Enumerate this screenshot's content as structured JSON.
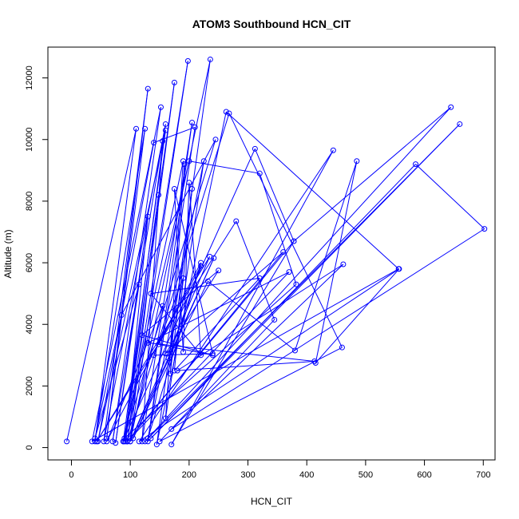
{
  "chart_data": {
    "type": "line",
    "title": "ATOM3 Southbound HCN_CIT",
    "xlabel": "HCN_CIT",
    "ylabel": "Altitude (m)",
    "xlim": [
      -40,
      720
    ],
    "ylim": [
      -400,
      13000
    ],
    "xticks": [
      0,
      100,
      200,
      300,
      400,
      500,
      600,
      700
    ],
    "yticks": [
      0,
      2000,
      4000,
      6000,
      8000,
      10000,
      12000
    ],
    "grid": false,
    "marker": "open-circle",
    "line_color": "#0000ff",
    "series": [
      {
        "values": [
          {
            "x": -8,
            "y": 200
          },
          {
            "x": 110,
            "y": 10350
          },
          {
            "x": 40,
            "y": 200
          },
          {
            "x": 125,
            "y": 10350
          },
          {
            "x": 60,
            "y": 300
          },
          {
            "x": 130,
            "y": 11650
          },
          {
            "x": 55,
            "y": 200
          },
          {
            "x": 160,
            "y": 10500
          },
          {
            "x": 90,
            "y": 200
          },
          {
            "x": 175,
            "y": 11850
          },
          {
            "x": 95,
            "y": 200
          },
          {
            "x": 198,
            "y": 12550
          },
          {
            "x": 100,
            "y": 200
          },
          {
            "x": 236,
            "y": 12600
          },
          {
            "x": 145,
            "y": 100
          },
          {
            "x": 263,
            "y": 10900
          },
          {
            "x": 556,
            "y": 5800
          },
          {
            "x": 35,
            "y": 200
          },
          {
            "x": 152,
            "y": 11050
          },
          {
            "x": 70,
            "y": 200
          },
          {
            "x": 155,
            "y": 9950
          },
          {
            "x": 120,
            "y": 200
          },
          {
            "x": 205,
            "y": 10550
          },
          {
            "x": 130,
            "y": 200
          },
          {
            "x": 210,
            "y": 10400
          },
          {
            "x": 140,
            "y": 9900
          },
          {
            "x": 45,
            "y": 200
          },
          {
            "x": 160,
            "y": 10300
          },
          {
            "x": 88,
            "y": 200
          },
          {
            "x": 245,
            "y": 10000
          },
          {
            "x": 85,
            "y": 4300
          },
          {
            "x": 40,
            "y": 300
          },
          {
            "x": 115,
            "y": 5300
          },
          {
            "x": 75,
            "y": 150
          },
          {
            "x": 130,
            "y": 7500
          },
          {
            "x": 92,
            "y": 200
          },
          {
            "x": 148,
            "y": 8200
          },
          {
            "x": 100,
            "y": 300
          },
          {
            "x": 155,
            "y": 4600
          },
          {
            "x": 60,
            "y": 200
          },
          {
            "x": 220,
            "y": 6000
          },
          {
            "x": 130,
            "y": 300
          },
          {
            "x": 225,
            "y": 9300
          },
          {
            "x": 160,
            "y": 950
          },
          {
            "x": 190,
            "y": 9300
          },
          {
            "x": 88,
            "y": 200
          },
          {
            "x": 200,
            "y": 9300
          },
          {
            "x": 320,
            "y": 8900
          },
          {
            "x": 382,
            "y": 5300
          },
          {
            "x": 90,
            "y": 300
          },
          {
            "x": 312,
            "y": 9700
          },
          {
            "x": 378,
            "y": 6700
          },
          {
            "x": 95,
            "y": 200
          },
          {
            "x": 268,
            "y": 10850
          },
          {
            "x": 460,
            "y": 3250
          },
          {
            "x": 150,
            "y": 200
          },
          {
            "x": 345,
            "y": 4150
          },
          {
            "x": 280,
            "y": 7350
          },
          {
            "x": 43,
            "y": 200
          },
          {
            "x": 235,
            "y": 6200
          },
          {
            "x": 100,
            "y": 200
          },
          {
            "x": 242,
            "y": 6150
          },
          {
            "x": 105,
            "y": 300
          },
          {
            "x": 232,
            "y": 5400
          },
          {
            "x": 380,
            "y": 3150
          },
          {
            "x": 485,
            "y": 9300
          },
          {
            "x": 415,
            "y": 2750
          },
          {
            "x": 557,
            "y": 5800
          },
          {
            "x": 115,
            "y": 200
          },
          {
            "x": 445,
            "y": 9650
          },
          {
            "x": 170,
            "y": 100
          },
          {
            "x": 378,
            "y": 6700
          },
          {
            "x": 645,
            "y": 11050
          },
          {
            "x": 125,
            "y": 200
          },
          {
            "x": 660,
            "y": 10500
          },
          {
            "x": 135,
            "y": 300
          },
          {
            "x": 585,
            "y": 9200
          },
          {
            "x": 702,
            "y": 7100
          },
          {
            "x": 170,
            "y": 600
          },
          {
            "x": 462,
            "y": 5950
          },
          {
            "x": 180,
            "y": 2500
          },
          {
            "x": 413,
            "y": 2800
          },
          {
            "x": 130,
            "y": 3400
          },
          {
            "x": 370,
            "y": 5700
          },
          {
            "x": 95,
            "y": 200
          },
          {
            "x": 360,
            "y": 6350
          },
          {
            "x": 160,
            "y": 3050
          },
          {
            "x": 250,
            "y": 5750
          },
          {
            "x": 120,
            "y": 3650
          },
          {
            "x": 240,
            "y": 3000
          },
          {
            "x": 148,
            "y": 3350
          },
          {
            "x": 220,
            "y": 5900
          },
          {
            "x": 165,
            "y": 2900
          },
          {
            "x": 190,
            "y": 5500
          },
          {
            "x": 140,
            "y": 3000
          },
          {
            "x": 240,
            "y": 3050
          },
          {
            "x": 175,
            "y": 8400
          },
          {
            "x": 190,
            "y": 3100
          },
          {
            "x": 200,
            "y": 8600
          },
          {
            "x": 220,
            "y": 3000
          },
          {
            "x": 135,
            "y": 5000
          },
          {
            "x": 320,
            "y": 5500
          },
          {
            "x": 175,
            "y": 2500
          },
          {
            "x": 205,
            "y": 8400
          },
          {
            "x": 168,
            "y": 2400
          },
          {
            "x": 192,
            "y": 9200
          }
        ]
      }
    ]
  }
}
